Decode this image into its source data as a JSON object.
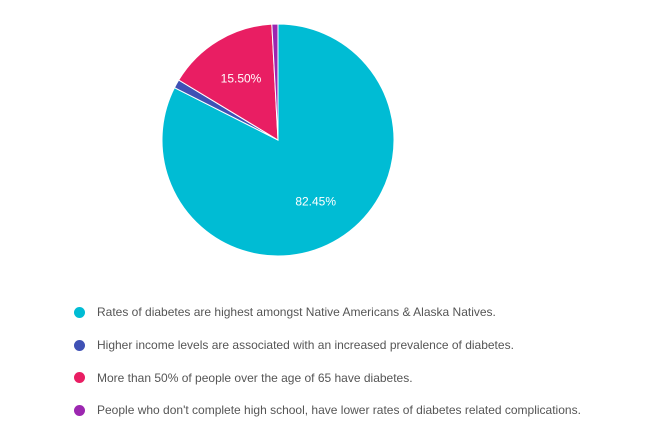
{
  "chart_data": {
    "type": "pie",
    "title": "",
    "slices": [
      {
        "label": "Rates of diabetes are highest amongst Native Americans & Alaska Natives.",
        "value": 82.45,
        "display": "82.45%",
        "color": "#00bcd4"
      },
      {
        "label": "Higher income levels are associated with an increased prevalence of diabetes.",
        "value": 1.2,
        "display": "",
        "color": "#3f51b5"
      },
      {
        "label": "More than 50% of people over the age of 65 have diabetes.",
        "value": 15.5,
        "display": "15.50%",
        "color": "#e91e63"
      },
      {
        "label": "People who don't complete high school, have lower rates of diabetes related complications.",
        "value": 0.85,
        "display": "",
        "color": "#9c27b0"
      }
    ],
    "legend_position": "bottom"
  }
}
